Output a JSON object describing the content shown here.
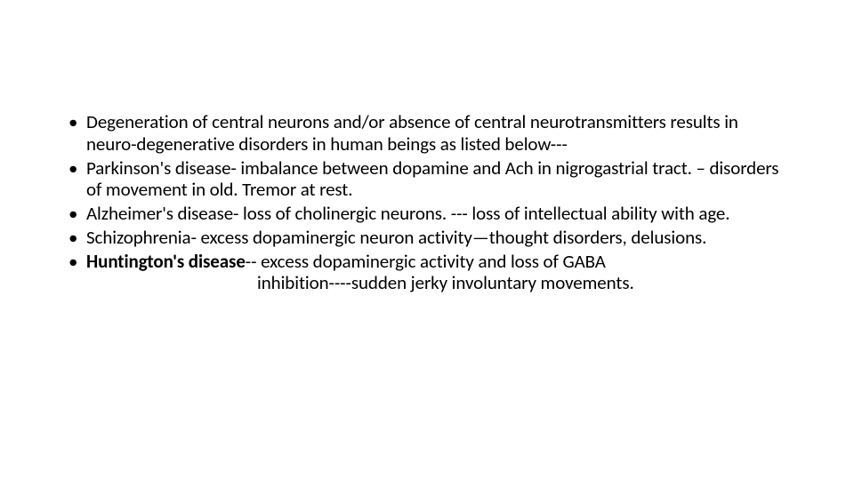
{
  "slide": {
    "font_family": "Calibri, 'Segoe UI', Arial, sans-serif",
    "font_size_pt": 16,
    "text_color": "#000000",
    "background_color": "#ffffff",
    "bullets": [
      {
        "text": "Degeneration of central neurons and/or absence of central neurotransmitters results in neuro-degenerative disorders in human beings as listed below---"
      },
      {
        "text": "Parkinson's disease- imbalance between dopamine and Ach in nigrogastrial tract. – disorders of movement in old. Tremor at rest."
      },
      {
        "text": "Alzheimer's disease-  loss of cholinergic neurons. --- loss of  intellectual ability with age."
      },
      {
        "text": "Schizophrenia- excess dopaminergic neuron activity—thought disorders, delusions."
      },
      {
        "bold_prefix": "Huntington's  disease",
        "rest_line1": "-- excess dopaminergic activity and loss of GABA",
        "line2": "inhibition----sudden jerky involuntary movements."
      }
    ]
  }
}
